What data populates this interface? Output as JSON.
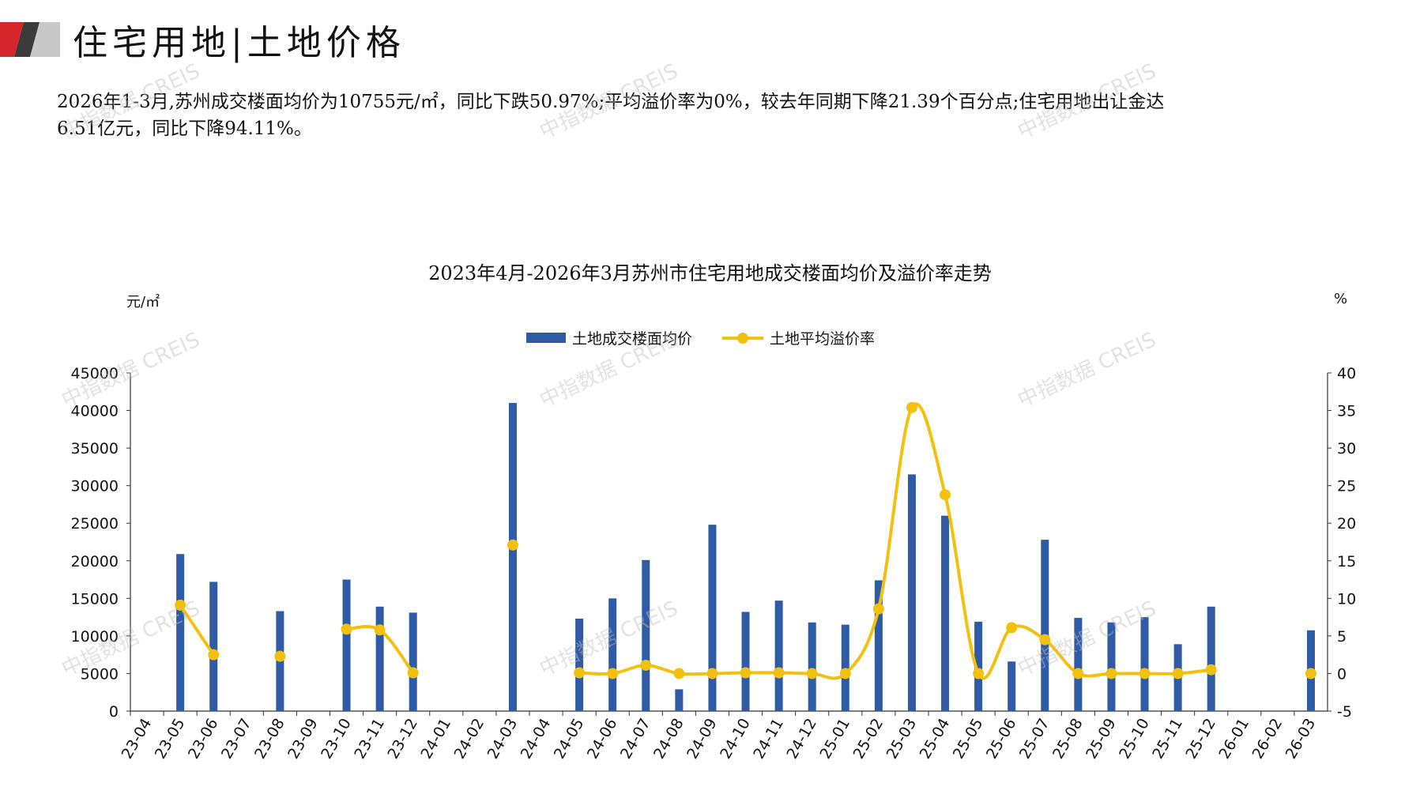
{
  "header": {
    "title": "住宅用地|土地价格",
    "summary_line1": "2026年1-3月,苏州成交楼面均价为10755元/㎡，同比下跌50.97%;平均溢价率为0%，较去年同期下降21.39个百分点;住宅用地出让金达",
    "summary_line2": "6.51亿元，同比下降94.11%。"
  },
  "watermark": "中指数据 CREIS",
  "chart_data": {
    "type": "bar+line",
    "title": "2023年4月-2026年3月苏州市住宅用地成交楼面均价及溢价率走势",
    "ylabel_left": "元/㎡",
    "ylabel_right": "%",
    "ylim_left": [
      0,
      45000
    ],
    "ylim_right": [
      -5,
      40
    ],
    "yticks_left": [
      "0",
      "5000",
      "10000",
      "15000",
      "20000",
      "25000",
      "30000",
      "35000",
      "40000",
      "45000"
    ],
    "yticks_right": [
      "-5",
      "0",
      "5",
      "10",
      "15",
      "20",
      "25",
      "30",
      "35",
      "40"
    ],
    "legend_position": "top-center",
    "categories": [
      "23-04",
      "23-05",
      "23-06",
      "23-07",
      "23-08",
      "23-09",
      "23-10",
      "23-11",
      "23-12",
      "24-01",
      "24-02",
      "24-03",
      "24-04",
      "24-05",
      "24-06",
      "24-07",
      "24-08",
      "24-09",
      "24-10",
      "24-11",
      "24-12",
      "25-01",
      "25-02",
      "25-03",
      "25-04",
      "25-05",
      "25-06",
      "25-07",
      "25-08",
      "25-09",
      "25-10",
      "25-11",
      "25-12",
      "26-01",
      "26-02",
      "26-03"
    ],
    "series": [
      {
        "name": "土地成交楼面均价",
        "type": "bar",
        "axis": "left",
        "color": "#2e5aa6",
        "values": [
          null,
          20900,
          17200,
          null,
          13300,
          null,
          17500,
          13900,
          13100,
          null,
          null,
          41000,
          null,
          12300,
          15000,
          20100,
          2900,
          24800,
          13200,
          14700,
          11800,
          11500,
          17400,
          31500,
          26000,
          11900,
          6600,
          22800,
          12400,
          11800,
          12500,
          8900,
          13900,
          null,
          null,
          10755
        ]
      },
      {
        "name": "土地平均溢价率",
        "type": "line",
        "axis": "right",
        "color": "#f2c10f",
        "values": [
          null,
          9.1,
          2.5,
          null,
          2.3,
          null,
          5.9,
          5.8,
          0.1,
          null,
          null,
          17.1,
          null,
          0.1,
          0.0,
          1.1,
          0.0,
          0.0,
          0.1,
          0.1,
          0.0,
          0.0,
          8.6,
          35.4,
          23.8,
          0.0,
          6.1,
          4.5,
          0.0,
          0.0,
          0.0,
          0.0,
          0.5,
          null,
          null,
          0.0
        ]
      }
    ]
  }
}
